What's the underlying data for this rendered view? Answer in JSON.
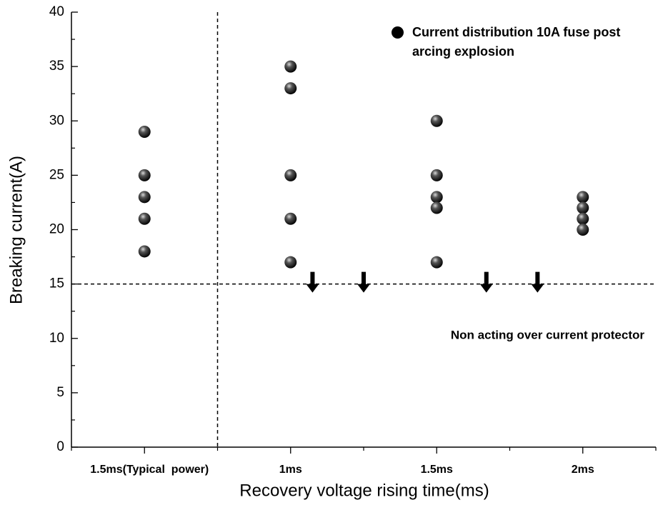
{
  "chart_data": {
    "type": "scatter",
    "xlabel": "Recovery voltage rising time(ms)",
    "ylabel": "Breaking current(A)",
    "xlim": [
      0.5,
      4.5
    ],
    "xticks": [
      {
        "value": 1,
        "label": "1.5ms(Typical  power)"
      },
      {
        "value": 2,
        "label": "1ms"
      },
      {
        "value": 3,
        "label": "1.5ms"
      },
      {
        "value": 4,
        "label": "2ms"
      }
    ],
    "ylim": [
      0,
      40
    ],
    "yticks": [
      0,
      5,
      10,
      15,
      20,
      25,
      30,
      35,
      40
    ],
    "series": [
      {
        "name": "Current distribution 10A fuse post arcing explosion",
        "color": "#000000",
        "x": [
          1,
          1,
          1,
          1,
          1,
          2,
          2,
          2,
          2,
          2,
          3,
          3,
          3,
          3,
          3,
          4,
          4,
          4,
          4
        ],
        "values": [
          29,
          25,
          23,
          21,
          18,
          35,
          33,
          25,
          21,
          17,
          30,
          25,
          23,
          22,
          17,
          23,
          22,
          21,
          20
        ]
      }
    ],
    "hlines": [
      15
    ],
    "vlines": [
      1.5
    ],
    "arrows_x": [
      2.15,
      2.5,
      3.34,
      3.69
    ],
    "annotation": "Non acting over current protector",
    "legend": "upper right"
  }
}
